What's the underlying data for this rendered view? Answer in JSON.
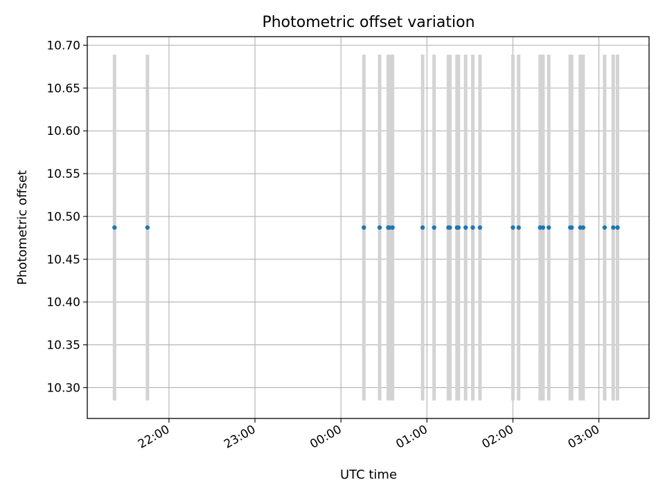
{
  "chart_data": {
    "type": "scatter",
    "title": "Photometric offset variation",
    "xlabel": "UTC time",
    "ylabel": "Photometric offset",
    "x_axis": {
      "kind": "time",
      "ticks": [
        "22:00",
        "23:00",
        "00:00",
        "01:00",
        "02:00",
        "03:00"
      ],
      "range": [
        "21:03",
        "03:35"
      ],
      "tick_rotation_deg": 30
    },
    "y_axis": {
      "ticks": [
        "10.30",
        "10.35",
        "10.40",
        "10.45",
        "10.50",
        "10.55",
        "10.60",
        "10.65",
        "10.70"
      ],
      "range": [
        10.264,
        10.71
      ]
    },
    "grid": true,
    "legend": "none",
    "series": [
      {
        "marker": "point",
        "color": "#1f77b4",
        "errorbar_color": "#d3d3d3",
        "points": [
          {
            "x": "21:22",
            "y": 10.487,
            "ylow": 10.285,
            "yhigh": 10.689
          },
          {
            "x": "21:45",
            "y": 10.487,
            "ylow": 10.285,
            "yhigh": 10.689
          },
          {
            "x": "00:16",
            "y": 10.487,
            "ylow": 10.285,
            "yhigh": 10.689
          },
          {
            "x": "00:27",
            "y": 10.487,
            "ylow": 10.285,
            "yhigh": 10.689
          },
          {
            "x": "00:33",
            "y": 10.487,
            "ylow": 10.285,
            "yhigh": 10.689
          },
          {
            "x": "00:34",
            "y": 10.487,
            "ylow": 10.285,
            "yhigh": 10.689
          },
          {
            "x": "00:36",
            "y": 10.487,
            "ylow": 10.285,
            "yhigh": 10.689
          },
          {
            "x": "00:57",
            "y": 10.487,
            "ylow": 10.285,
            "yhigh": 10.689
          },
          {
            "x": "01:05",
            "y": 10.487,
            "ylow": 10.285,
            "yhigh": 10.689
          },
          {
            "x": "01:15",
            "y": 10.487,
            "ylow": 10.285,
            "yhigh": 10.689
          },
          {
            "x": "01:16",
            "y": 10.487,
            "ylow": 10.285,
            "yhigh": 10.689
          },
          {
            "x": "01:21",
            "y": 10.487,
            "ylow": 10.285,
            "yhigh": 10.689
          },
          {
            "x": "01:22",
            "y": 10.487,
            "ylow": 10.285,
            "yhigh": 10.689
          },
          {
            "x": "01:27",
            "y": 10.487,
            "ylow": 10.285,
            "yhigh": 10.689
          },
          {
            "x": "01:32",
            "y": 10.487,
            "ylow": 10.285,
            "yhigh": 10.689
          },
          {
            "x": "01:37",
            "y": 10.487,
            "ylow": 10.285,
            "yhigh": 10.689
          },
          {
            "x": "02:00",
            "y": 10.487,
            "ylow": 10.285,
            "yhigh": 10.689
          },
          {
            "x": "02:04",
            "y": 10.487,
            "ylow": 10.285,
            "yhigh": 10.689
          },
          {
            "x": "02:19",
            "y": 10.487,
            "ylow": 10.285,
            "yhigh": 10.689
          },
          {
            "x": "02:21",
            "y": 10.487,
            "ylow": 10.285,
            "yhigh": 10.689
          },
          {
            "x": "02:25",
            "y": 10.487,
            "ylow": 10.285,
            "yhigh": 10.689
          },
          {
            "x": "02:40",
            "y": 10.487,
            "ylow": 10.285,
            "yhigh": 10.689
          },
          {
            "x": "02:41",
            "y": 10.487,
            "ylow": 10.285,
            "yhigh": 10.689
          },
          {
            "x": "02:47",
            "y": 10.487,
            "ylow": 10.285,
            "yhigh": 10.689
          },
          {
            "x": "02:49",
            "y": 10.487,
            "ylow": 10.285,
            "yhigh": 10.689
          },
          {
            "x": "03:04",
            "y": 10.487,
            "ylow": 10.285,
            "yhigh": 10.689
          },
          {
            "x": "03:10",
            "y": 10.487,
            "ylow": 10.285,
            "yhigh": 10.689
          },
          {
            "x": "03:13",
            "y": 10.487,
            "ylow": 10.285,
            "yhigh": 10.689
          }
        ]
      }
    ]
  }
}
